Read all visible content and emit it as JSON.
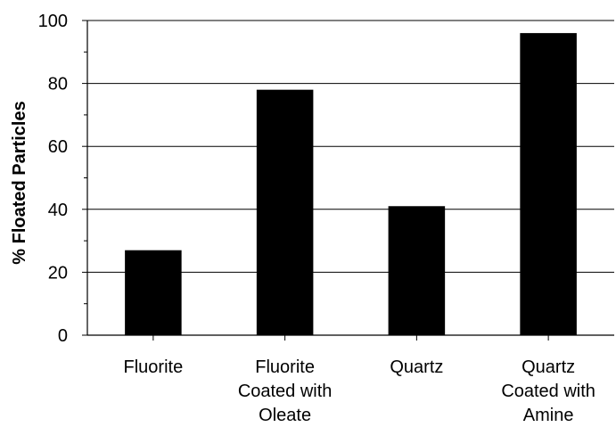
{
  "chart_data": {
    "type": "bar",
    "title": "",
    "xlabel": "",
    "ylabel": "% Floated Particles",
    "ylim": [
      0,
      100
    ],
    "yticks": [
      0,
      20,
      40,
      60,
      80,
      100
    ],
    "grid": "horizontal",
    "categories": [
      [
        "Fluorite"
      ],
      [
        "Fluorite",
        "Coated with",
        "Oleate"
      ],
      [
        "Quartz"
      ],
      [
        "Quartz",
        "Coated with",
        "Amine"
      ]
    ],
    "values": [
      27,
      78,
      41,
      96
    ],
    "bar_color": "#000000"
  }
}
